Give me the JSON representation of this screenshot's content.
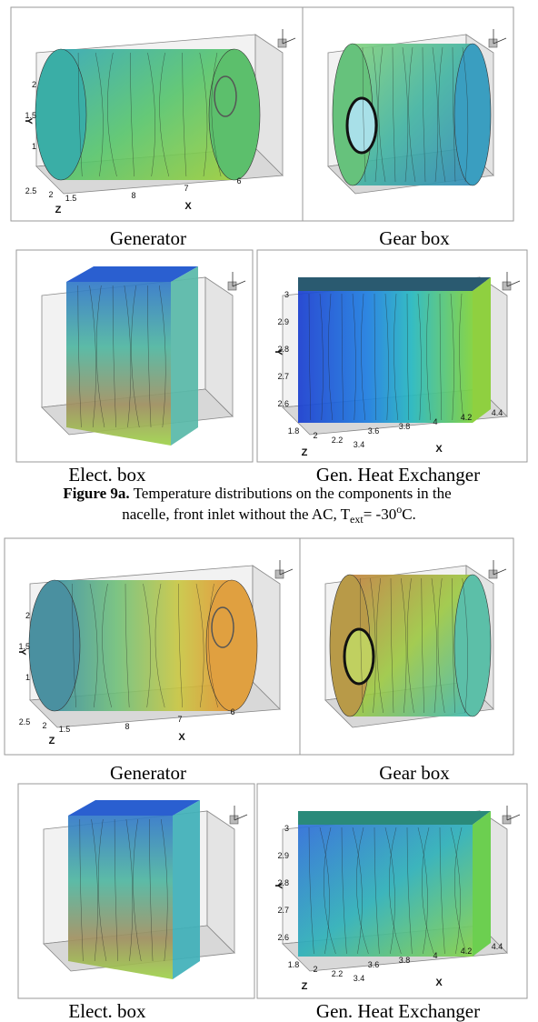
{
  "figure_a": {
    "panels": [
      {
        "caption": "Generator",
        "axes": [
          "Y",
          "Z",
          "X"
        ],
        "y_ticks": [
          "2",
          "1.5",
          "1"
        ],
        "z_ticks": [
          "2.5",
          "2",
          "1.5"
        ],
        "x_ticks": [
          "8",
          "7",
          "6"
        ]
      },
      {
        "caption": "Gear box"
      },
      {
        "caption": "Elect. box"
      },
      {
        "caption": "Gen. Heat Exchanger",
        "axes": [
          "Y",
          "Z",
          "X"
        ],
        "y_ticks": [
          "3",
          "2.9",
          "2.8",
          "2.7",
          "2.6"
        ],
        "z_ticks": [
          "1.8",
          "2",
          "2.2",
          "3.4"
        ],
        "x_ticks": [
          "3.6",
          "3.8",
          "4",
          "4.2",
          "4.4"
        ]
      }
    ],
    "caption": {
      "label": "Figure 9a.",
      "line1": " Temperature distributions on the components in the",
      "line2": "nacelle, front inlet without the AC, T",
      "sub": "ext",
      "mid": "= -30",
      "sup": "o",
      "end": "C."
    }
  },
  "figure_b": {
    "panels": [
      {
        "caption": "Generator",
        "axes": [
          "Y",
          "Z",
          "X"
        ],
        "y_ticks": [
          "2",
          "1.5",
          "1"
        ],
        "z_ticks": [
          "2.5",
          "2",
          "1.5"
        ],
        "x_ticks": [
          "8",
          "7",
          "6"
        ]
      },
      {
        "caption": "Gear box"
      },
      {
        "caption": "Elect. box"
      },
      {
        "caption": "Gen. Heat Exchanger",
        "axes": [
          "Y",
          "Z",
          "X"
        ],
        "y_ticks": [
          "3",
          "2.9",
          "2.8",
          "2.7",
          "2.6"
        ],
        "z_ticks": [
          "1.8",
          "2",
          "2.2",
          "3.4"
        ],
        "x_ticks": [
          "3.6",
          "3.8",
          "4",
          "4.2",
          "4.4"
        ]
      }
    ]
  }
}
